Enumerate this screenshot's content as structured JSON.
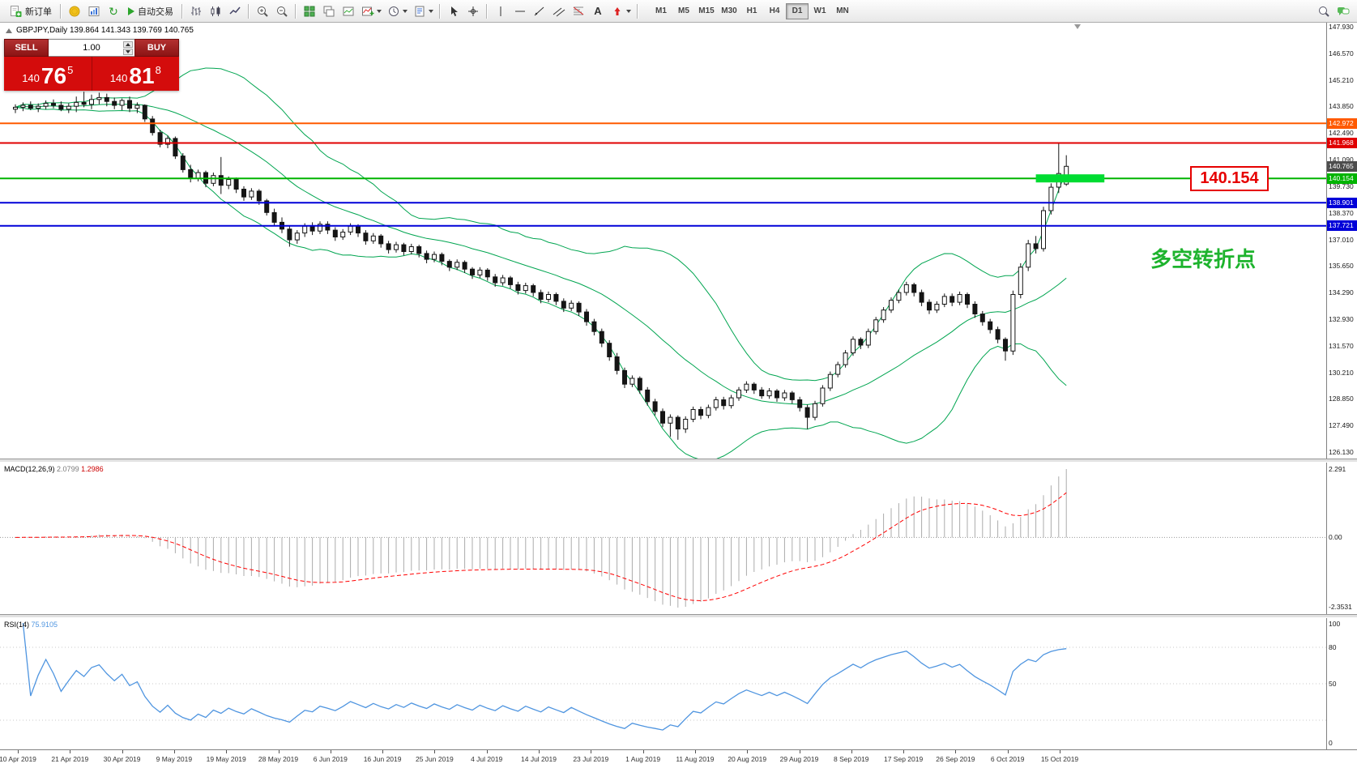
{
  "toolbar": {
    "new_order_label": "新订单",
    "autotrade_label": "自动交易",
    "text_tool_glyph": "A",
    "refresh_glyph": "↻",
    "timeframes": [
      "M1",
      "M5",
      "M15",
      "M30",
      "H1",
      "H4",
      "D1",
      "W1",
      "MN"
    ],
    "active_timeframe": "D1"
  },
  "chart": {
    "symbol": "GBPJPY,Daily",
    "ohlc": "139.864 141.343 139.769 140.765",
    "band_color": "#00a550",
    "trade_panel": {
      "sell_label": "SELL",
      "buy_label": "BUY",
      "volume": "1.00",
      "sell_price": {
        "prefix": "140",
        "big": "76",
        "sup": "5"
      },
      "buy_price": {
        "prefix": "140",
        "big": "81",
        "sup": "8"
      }
    },
    "levels": [
      {
        "value": "142.972",
        "price": 142.972,
        "color": "#ff5a00",
        "line_width": 2
      },
      {
        "value": "141.968",
        "price": 141.968,
        "color": "#e00000",
        "line_width": 2
      },
      {
        "value": "140.154",
        "price": 140.154,
        "color": "#00b400",
        "line_width": 2
      },
      {
        "value": "138.901",
        "price": 138.901,
        "color": "#0000d8",
        "line_width": 2
      },
      {
        "value": "137.721",
        "price": 137.721,
        "color": "#0000d8",
        "line_width": 2
      }
    ],
    "current": {
      "value": "140.765",
      "price": 140.765,
      "color": "#4d4d4d"
    },
    "highlight": {
      "price": 140.154,
      "from_bar": 134,
      "to_bar": 143,
      "color": "#00dc32"
    },
    "price_label_box": "140.154",
    "annotation_text": "多空转折点",
    "annotation_color": "#1db32d",
    "axis_ticks": [
      "147.930",
      "146.570",
      "145.210",
      "143.850",
      "142.490",
      "141.090",
      "139.730",
      "138.370",
      "137.010",
      "135.650",
      "134.290",
      "132.930",
      "131.570",
      "130.210",
      "128.850",
      "127.490",
      "126.130"
    ],
    "axis": {
      "max": 147.93,
      "min": 126.13
    }
  },
  "macd": {
    "name": "MACD(12,26,9)",
    "main_value": "2.0799",
    "signal_value": "1.2986",
    "ticks": [
      "2.291",
      "0.00",
      "-2.3531"
    ]
  },
  "rsi": {
    "name": "RSI(14)",
    "value": "75.9105",
    "ticks": [
      "100",
      "80",
      "50",
      "0"
    ]
  },
  "dates": [
    "10 Apr 2019",
    "21 Apr 2019",
    "30 Apr 2019",
    "9 May 2019",
    "19 May 2019",
    "28 May 2019",
    "6 Jun 2019",
    "16 Jun 2019",
    "25 Jun 2019",
    "4 Jul 2019",
    "14 Jul 2019",
    "23 Jul 2019",
    "1 Aug 2019",
    "11 Aug 2019",
    "20 Aug 2019",
    "29 Aug 2019",
    "8 Sep 2019",
    "17 Sep 2019",
    "26 Sep 2019",
    "6 Oct 2019",
    "15 Oct 2019"
  ],
  "chart_data": {
    "type": "candlestick",
    "symbol": "GBPJPY",
    "timeframe": "Daily",
    "indicators": {
      "bollinger_period": 20,
      "bollinger_deviation": 2,
      "macd": [
        12,
        26,
        9
      ],
      "rsi_period": 14
    },
    "candles": [
      [
        143.7,
        143.95,
        143.5,
        143.8
      ],
      [
        143.8,
        144.05,
        143.6,
        143.9
      ],
      [
        143.9,
        144.1,
        143.65,
        143.75
      ],
      [
        143.75,
        144.0,
        143.55,
        143.85
      ],
      [
        143.85,
        144.15,
        143.7,
        144.0
      ],
      [
        144.0,
        144.2,
        143.75,
        143.9
      ],
      [
        143.9,
        144.1,
        143.6,
        143.7
      ],
      [
        143.7,
        144.0,
        143.5,
        143.85
      ],
      [
        143.85,
        144.35,
        143.55,
        144.05
      ],
      [
        144.05,
        144.6,
        143.8,
        143.95
      ],
      [
        143.95,
        144.45,
        143.7,
        144.2
      ],
      [
        144.2,
        144.55,
        143.95,
        144.3
      ],
      [
        144.3,
        144.5,
        143.85,
        144.1
      ],
      [
        144.1,
        144.3,
        143.7,
        143.9
      ],
      [
        143.9,
        144.25,
        143.65,
        144.15
      ],
      [
        144.15,
        144.35,
        143.55,
        143.75
      ],
      [
        143.75,
        144.05,
        143.5,
        143.9
      ],
      [
        143.9,
        143.95,
        143.05,
        143.2
      ],
      [
        143.2,
        143.35,
        142.35,
        142.5
      ],
      [
        142.5,
        142.65,
        141.75,
        141.9
      ],
      [
        141.9,
        142.35,
        141.7,
        142.2
      ],
      [
        142.2,
        142.3,
        141.15,
        141.3
      ],
      [
        141.3,
        141.45,
        140.45,
        140.6
      ],
      [
        140.6,
        140.85,
        139.95,
        140.15
      ],
      [
        140.15,
        140.6,
        140.0,
        140.45
      ],
      [
        140.45,
        140.55,
        139.7,
        139.9
      ],
      [
        139.9,
        140.45,
        139.75,
        140.3
      ],
      [
        140.3,
        141.25,
        139.35,
        139.8
      ],
      [
        139.8,
        140.25,
        139.6,
        140.1
      ],
      [
        140.1,
        140.2,
        139.4,
        139.6
      ],
      [
        139.6,
        139.75,
        139.0,
        139.2
      ],
      [
        139.2,
        139.65,
        139.05,
        139.5
      ],
      [
        139.5,
        139.6,
        138.8,
        139.0
      ],
      [
        139.0,
        139.1,
        138.25,
        138.4
      ],
      [
        138.4,
        138.6,
        137.7,
        137.9
      ],
      [
        137.9,
        138.15,
        137.35,
        137.55
      ],
      [
        137.55,
        137.7,
        136.65,
        137.0
      ],
      [
        137.0,
        137.5,
        136.8,
        137.35
      ],
      [
        137.35,
        137.85,
        137.15,
        137.7
      ],
      [
        137.7,
        137.9,
        137.25,
        137.45
      ],
      [
        137.45,
        137.95,
        137.3,
        137.8
      ],
      [
        137.8,
        137.95,
        137.3,
        137.5
      ],
      [
        137.5,
        137.65,
        136.95,
        137.15
      ],
      [
        137.15,
        137.55,
        137.0,
        137.4
      ],
      [
        137.4,
        137.85,
        137.25,
        137.7
      ],
      [
        137.7,
        137.8,
        137.15,
        137.35
      ],
      [
        137.35,
        137.5,
        136.75,
        136.95
      ],
      [
        136.95,
        137.35,
        136.8,
        137.2
      ],
      [
        137.2,
        137.3,
        136.6,
        136.8
      ],
      [
        136.8,
        136.95,
        136.3,
        136.5
      ],
      [
        136.5,
        136.9,
        136.35,
        136.75
      ],
      [
        136.75,
        136.85,
        136.2,
        136.4
      ],
      [
        136.4,
        136.8,
        136.25,
        136.65
      ],
      [
        136.65,
        136.75,
        136.1,
        136.3
      ],
      [
        136.3,
        136.45,
        135.8,
        136.0
      ],
      [
        136.0,
        136.4,
        135.85,
        136.25
      ],
      [
        136.25,
        136.35,
        135.7,
        135.9
      ],
      [
        135.9,
        136.0,
        135.4,
        135.6
      ],
      [
        135.6,
        136.0,
        135.45,
        135.85
      ],
      [
        135.85,
        135.95,
        135.3,
        135.5
      ],
      [
        135.5,
        135.6,
        135.0,
        135.2
      ],
      [
        135.2,
        135.6,
        135.05,
        135.45
      ],
      [
        135.45,
        135.55,
        134.9,
        135.1
      ],
      [
        135.1,
        135.25,
        134.6,
        134.8
      ],
      [
        134.8,
        135.2,
        134.65,
        135.05
      ],
      [
        135.05,
        135.15,
        134.5,
        134.7
      ],
      [
        134.7,
        134.85,
        134.2,
        134.4
      ],
      [
        134.4,
        134.8,
        134.25,
        134.65
      ],
      [
        134.65,
        134.75,
        134.1,
        134.3
      ],
      [
        134.3,
        134.45,
        133.75,
        133.95
      ],
      [
        133.95,
        134.35,
        133.8,
        134.2
      ],
      [
        134.2,
        134.3,
        133.65,
        133.85
      ],
      [
        133.85,
        134.0,
        133.3,
        133.5
      ],
      [
        133.5,
        133.9,
        133.35,
        133.75
      ],
      [
        133.75,
        133.85,
        133.1,
        133.3
      ],
      [
        133.3,
        133.45,
        132.6,
        132.8
      ],
      [
        132.8,
        132.95,
        132.1,
        132.3
      ],
      [
        132.3,
        132.45,
        131.5,
        131.7
      ],
      [
        131.7,
        131.85,
        130.8,
        131.0
      ],
      [
        131.0,
        131.2,
        130.1,
        130.3
      ],
      [
        130.3,
        130.45,
        129.4,
        129.6
      ],
      [
        129.6,
        130.05,
        129.45,
        129.9
      ],
      [
        129.9,
        130.0,
        129.1,
        129.3
      ],
      [
        129.3,
        129.45,
        128.5,
        128.7
      ],
      [
        128.7,
        128.85,
        128.0,
        128.2
      ],
      [
        128.2,
        128.35,
        127.4,
        127.6
      ],
      [
        127.6,
        128.05,
        126.9,
        127.9
      ],
      [
        127.9,
        128.0,
        126.75,
        127.3
      ],
      [
        127.3,
        127.95,
        127.1,
        127.8
      ],
      [
        127.8,
        128.45,
        127.65,
        128.3
      ],
      [
        128.3,
        128.45,
        127.8,
        128.0
      ],
      [
        128.0,
        128.55,
        127.85,
        128.4
      ],
      [
        128.4,
        128.95,
        128.25,
        128.8
      ],
      [
        128.8,
        128.95,
        128.3,
        128.5
      ],
      [
        128.5,
        129.05,
        128.35,
        128.9
      ],
      [
        128.9,
        129.45,
        128.75,
        129.3
      ],
      [
        129.3,
        129.75,
        129.15,
        129.6
      ],
      [
        129.6,
        129.7,
        129.1,
        129.3
      ],
      [
        129.3,
        129.45,
        128.85,
        129.0
      ],
      [
        129.0,
        129.4,
        128.85,
        129.25
      ],
      [
        129.25,
        129.35,
        128.7,
        128.9
      ],
      [
        128.9,
        129.3,
        128.75,
        129.15
      ],
      [
        129.15,
        129.25,
        128.6,
        128.8
      ],
      [
        128.8,
        128.95,
        128.2,
        128.4
      ],
      [
        128.4,
        128.55,
        127.3,
        127.9
      ],
      [
        127.9,
        128.75,
        127.75,
        128.6
      ],
      [
        128.6,
        129.55,
        128.45,
        129.4
      ],
      [
        129.4,
        130.25,
        129.25,
        130.1
      ],
      [
        130.1,
        130.75,
        129.95,
        130.6
      ],
      [
        130.6,
        131.35,
        130.45,
        131.2
      ],
      [
        131.2,
        132.05,
        131.05,
        131.9
      ],
      [
        131.9,
        132.0,
        131.4,
        131.6
      ],
      [
        131.6,
        132.45,
        131.45,
        132.3
      ],
      [
        132.3,
        133.05,
        132.15,
        132.9
      ],
      [
        132.9,
        133.55,
        132.75,
        133.4
      ],
      [
        133.4,
        134.05,
        133.25,
        133.9
      ],
      [
        133.9,
        134.45,
        133.75,
        134.3
      ],
      [
        134.3,
        134.85,
        134.15,
        134.7
      ],
      [
        134.7,
        134.8,
        134.1,
        134.3
      ],
      [
        134.3,
        134.45,
        133.6,
        133.8
      ],
      [
        133.8,
        133.95,
        133.2,
        133.4
      ],
      [
        133.4,
        133.85,
        133.25,
        133.7
      ],
      [
        133.7,
        134.25,
        133.55,
        134.1
      ],
      [
        134.1,
        134.25,
        133.6,
        133.8
      ],
      [
        133.8,
        134.35,
        133.65,
        134.2
      ],
      [
        134.2,
        134.3,
        133.5,
        133.7
      ],
      [
        133.7,
        133.85,
        133.0,
        133.2
      ],
      [
        133.2,
        133.35,
        132.6,
        132.8
      ],
      [
        132.8,
        132.95,
        132.2,
        132.4
      ],
      [
        132.4,
        132.55,
        131.7,
        131.9
      ],
      [
        131.9,
        132.0,
        130.8,
        131.3
      ],
      [
        131.3,
        134.4,
        131.1,
        134.2
      ],
      [
        134.2,
        135.8,
        134.0,
        135.6
      ],
      [
        135.6,
        137.0,
        135.4,
        136.8
      ],
      [
        136.8,
        137.2,
        136.3,
        136.55
      ],
      [
        136.55,
        138.7,
        136.4,
        138.5
      ],
      [
        138.5,
        139.9,
        138.3,
        139.7
      ],
      [
        139.7,
        141.95,
        139.4,
        140.4
      ],
      [
        139.86,
        141.34,
        139.77,
        140.77
      ]
    ]
  }
}
